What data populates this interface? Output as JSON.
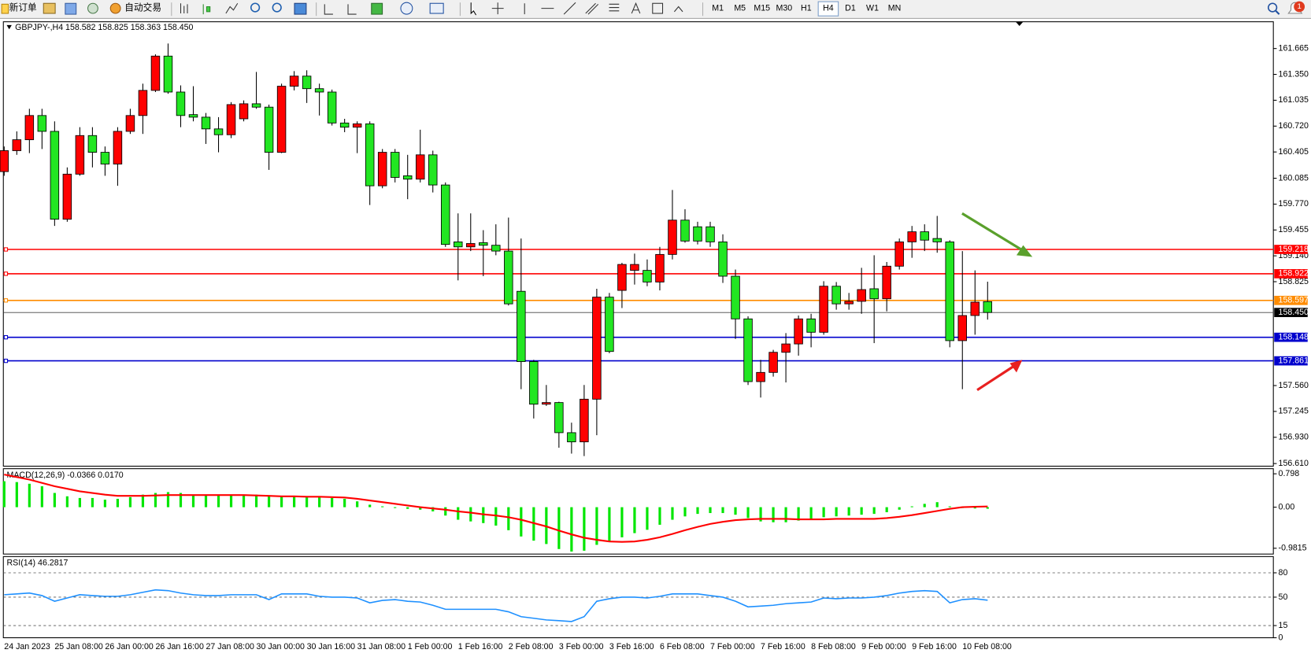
{
  "toolbar": {
    "new_order": "新订单",
    "auto_trading": "自动交易",
    "timeframes": [
      "M1",
      "M5",
      "M15",
      "M30",
      "H1",
      "H4",
      "D1",
      "W1",
      "MN"
    ],
    "active": "H4",
    "notifications": 1
  },
  "chart_data": [
    {
      "type": "candlestick",
      "title": "GBPJPY-,H4 158.582 158.825 158.363 158.450",
      "categories": [
        "24 Jan 2023",
        null,
        null,
        null,
        "25 Jan 08:00",
        null,
        null,
        null,
        "26 Jan 00:00",
        null,
        null,
        null,
        "26 Jan 16:00",
        null,
        null,
        null,
        "27 Jan 08:00",
        null,
        null,
        null,
        "30 Jan 00:00",
        null,
        null,
        null,
        "30 Jan 16:00",
        null,
        null,
        null,
        "31 Jan 08:00",
        null,
        null,
        null,
        "1 Feb 00:00",
        null,
        null,
        null,
        "1 Feb 16:00",
        null,
        null,
        null,
        "2 Feb 08:00",
        null,
        null,
        null,
        "3 Feb 00:00",
        null,
        null,
        null,
        "3 Feb 16:00",
        null,
        null,
        null,
        "6 Feb 08:00",
        null,
        null,
        null,
        "7 Feb 00:00",
        null,
        null,
        null,
        "7 Feb 16:00",
        null,
        null,
        null,
        "8 Feb 08:00",
        null,
        null,
        null,
        "9 Feb 00:00",
        null,
        null,
        null,
        "9 Feb 16:00",
        null,
        null,
        null,
        "10 Feb 08:00",
        null,
        null
      ],
      "open": [
        160.166,
        160.421,
        160.554,
        160.849,
        160.656,
        159.586,
        160.135,
        160.605,
        160.401,
        160.258,
        160.656,
        160.849,
        161.155,
        161.573,
        161.135,
        160.86,
        160.829,
        160.686,
        160.615,
        160.809,
        160.992,
        160.951,
        160.401,
        161.206,
        161.329,
        161.176,
        161.135,
        160.758,
        160.707,
        160.748,
        159.993,
        160.401,
        160.115,
        160.074,
        160.37,
        160.003,
        159.31,
        159.249,
        159.3,
        159.269,
        159.198,
        158.708,
        157.852,
        157.333,
        157.353,
        156.986,
        156.874,
        157.394,
        158.637,
        158.719,
        158.963,
        158.963,
        158.821,
        159.157,
        159.575,
        159.494,
        159.494,
        159.31,
        158.892,
        158.372,
        157.608,
        157.72,
        157.965,
        158.067,
        158.372,
        158.209,
        158.77,
        158.555,
        158.586,
        158.739,
        158.617,
        159.014,
        159.31,
        159.433,
        159.351,
        159.31,
        158.107,
        158.413,
        158.582
      ],
      "high": [
        160.472,
        160.656,
        160.931,
        160.931,
        160.778,
        160.217,
        160.707,
        160.707,
        160.472,
        160.707,
        160.931,
        161.237,
        161.594,
        161.726,
        161.216,
        161.206,
        160.88,
        160.829,
        161.012,
        161.033,
        161.38,
        160.982,
        161.237,
        161.39,
        161.4,
        161.237,
        161.165,
        160.809,
        160.778,
        160.778,
        160.441,
        160.441,
        160.37,
        160.676,
        160.421,
        160.034,
        159.657,
        159.657,
        159.453,
        159.524,
        159.606,
        159.351,
        157.873,
        157.567,
        157.363,
        157.108,
        157.567,
        158.739,
        158.688,
        159.055,
        159.167,
        159.096,
        159.249,
        159.942,
        159.708,
        159.555,
        159.555,
        159.402,
        158.973,
        158.403,
        157.873,
        157.995,
        158.199,
        158.413,
        158.434,
        158.831,
        158.821,
        158.688,
        158.994,
        159.147,
        159.065,
        159.351,
        159.504,
        159.524,
        159.626,
        159.33,
        159.198,
        158.963,
        158.825
      ],
      "low": [
        160.115,
        160.37,
        160.391,
        160.441,
        159.504,
        159.555,
        160.115,
        160.217,
        160.115,
        159.993,
        160.625,
        160.625,
        161.135,
        161.114,
        160.707,
        160.778,
        160.503,
        160.401,
        160.574,
        160.778,
        160.931,
        160.187,
        160.391,
        161.155,
        161.002,
        160.849,
        160.727,
        160.646,
        160.391,
        159.759,
        159.963,
        160.034,
        159.83,
        160.034,
        159.912,
        159.249,
        158.841,
        159.198,
        158.892,
        159.147,
        158.535,
        157.516,
        157.159,
        157.312,
        156.803,
        156.731,
        156.701,
        156.955,
        157.954,
        158.504,
        158.79,
        158.77,
        158.719,
        159.096,
        159.3,
        159.279,
        159.249,
        158.81,
        158.128,
        157.567,
        157.414,
        157.669,
        157.598,
        157.924,
        158.026,
        158.179,
        158.484,
        158.484,
        158.434,
        158.077,
        158.464,
        158.973,
        159.116,
        159.198,
        159.178,
        158.026,
        157.516,
        158.179,
        158.363
      ],
      "close": [
        160.421,
        160.554,
        160.849,
        160.656,
        159.586,
        160.135,
        160.605,
        160.401,
        160.258,
        160.656,
        160.849,
        161.155,
        161.573,
        161.135,
        160.849,
        160.829,
        160.686,
        160.615,
        160.982,
        160.992,
        160.951,
        160.401,
        161.206,
        161.329,
        161.176,
        161.135,
        160.758,
        160.707,
        160.748,
        159.993,
        160.401,
        160.095,
        160.074,
        160.37,
        160.003,
        159.279,
        159.249,
        159.29,
        159.269,
        159.198,
        158.555,
        157.852,
        157.333,
        157.353,
        156.986,
        156.874,
        157.394,
        158.637,
        157.975,
        159.035,
        159.035,
        158.821,
        159.157,
        159.575,
        159.32,
        159.32,
        159.31,
        158.892,
        158.372,
        157.608,
        157.72,
        157.965,
        158.067,
        158.372,
        158.209,
        158.77,
        158.555,
        158.586,
        158.729,
        158.617,
        159.014,
        159.31,
        159.433,
        159.331,
        159.31,
        158.107,
        158.413,
        158.576,
        158.45
      ],
      "up_color": "#ff0000",
      "down_color": "#22e622",
      "ylim": [
        156.578,
        161.991
      ],
      "yticks": [
        161.665,
        {
          "value": 161.35,
          "label": "161.350"
        },
        161.035,
        {
          "value": 160.72,
          "label": "160.720"
        },
        160.405,
        160.085,
        {
          "value": 159.77,
          "label": "159.770"
        },
        159.455,
        {
          "value": 159.14,
          "label": "159.140"
        },
        158.825,
        {
          "value": 157.56,
          "label": "157.560"
        },
        157.245,
        {
          "value": 156.93,
          "label": "156.930"
        },
        {
          "value": 156.61,
          "label": "156.610"
        }
      ],
      "hlines": [
        {
          "value": 159.218,
          "color": "#ff0000"
        },
        {
          "value": 158.922,
          "color": "#ff0000"
        },
        {
          "value": 158.597,
          "color": "#ff8c00"
        },
        {
          "value": 158.45,
          "label": "158.450",
          "color": "#000000"
        },
        {
          "value": 158.148,
          "color": "#0000cd"
        },
        {
          "value": 157.861,
          "color": "#0000cd"
        }
      ]
    },
    {
      "type": "macd",
      "title": "MACD(12,26,9) -0.0366 0.0170",
      "histogram": {
        "color": "#00e600",
        "values": [
          0.62,
          0.6,
          0.56,
          0.5,
          0.34,
          0.26,
          0.22,
          0.22,
          0.18,
          0.2,
          0.24,
          0.3,
          0.34,
          0.36,
          0.34,
          0.3,
          0.3,
          0.28,
          0.3,
          0.3,
          0.3,
          0.26,
          0.26,
          0.26,
          0.26,
          0.24,
          0.22,
          0.2,
          0.14,
          0.06,
          0.02,
          -0.02,
          -0.04,
          -0.06,
          -0.1,
          -0.2,
          -0.3,
          -0.34,
          -0.38,
          -0.44,
          -0.55,
          -0.7,
          -0.8,
          -0.88,
          -1.0,
          -1.06,
          -1.04,
          -0.9,
          -0.82,
          -0.72,
          -0.62,
          -0.54,
          -0.42,
          -0.3,
          -0.22,
          -0.16,
          -0.14,
          -0.14,
          -0.18,
          -0.26,
          -0.34,
          -0.36,
          -0.36,
          -0.32,
          -0.3,
          -0.24,
          -0.22,
          -0.2,
          -0.18,
          -0.16,
          -0.12,
          -0.06,
          0.02,
          0.08,
          0.12,
          0.02,
          -0.02,
          -0.03,
          -0.0366
        ]
      },
      "signal": {
        "color": "#ff0000",
        "values": [
          0.78,
          0.72,
          0.66,
          0.58,
          0.5,
          0.44,
          0.38,
          0.34,
          0.3,
          0.27,
          0.27,
          0.27,
          0.28,
          0.29,
          0.29,
          0.29,
          0.29,
          0.29,
          0.29,
          0.29,
          0.28,
          0.27,
          0.26,
          0.26,
          0.25,
          0.25,
          0.24,
          0.23,
          0.2,
          0.16,
          0.12,
          0.08,
          0.04,
          0.0,
          -0.03,
          -0.06,
          -0.1,
          -0.13,
          -0.17,
          -0.2,
          -0.24,
          -0.3,
          -0.38,
          -0.46,
          -0.56,
          -0.65,
          -0.73,
          -0.78,
          -0.82,
          -0.83,
          -0.82,
          -0.78,
          -0.72,
          -0.64,
          -0.55,
          -0.47,
          -0.4,
          -0.35,
          -0.31,
          -0.29,
          -0.28,
          -0.28,
          -0.28,
          -0.29,
          -0.29,
          -0.29,
          -0.28,
          -0.28,
          -0.28,
          -0.28,
          -0.26,
          -0.23,
          -0.19,
          -0.14,
          -0.09,
          -0.04,
          0.0,
          0.01,
          0.017
        ]
      },
      "ylim": [
        -1.12,
        0.92
      ],
      "yticks": [
        0.798,
        {
          "value": 0,
          "label": "0.00"
        },
        -0.9815
      ]
    },
    {
      "type": "line",
      "title": "RSI(14) 46.2817",
      "color": "#1e90ff",
      "values": [
        53,
        54,
        55,
        52,
        45,
        49,
        53,
        52,
        51,
        51,
        53,
        56,
        59,
        58,
        55,
        53,
        52,
        52,
        53,
        53,
        53,
        47,
        54,
        54,
        54,
        51,
        50,
        50,
        49,
        43,
        46,
        47,
        45,
        44,
        40,
        35,
        35,
        35,
        35,
        35,
        32,
        26,
        24,
        22,
        21,
        20,
        26,
        45,
        48,
        50,
        50,
        49,
        51,
        54,
        54,
        54,
        52,
        50,
        45,
        38,
        39,
        40,
        42,
        43,
        44,
        49,
        48,
        49,
        49,
        50,
        52,
        55,
        57,
        58,
        57,
        43,
        47,
        48,
        46.2817
      ],
      "ylim": [
        0,
        100
      ],
      "yticks": [
        0,
        15,
        50,
        80
      ],
      "grid": true
    }
  ]
}
